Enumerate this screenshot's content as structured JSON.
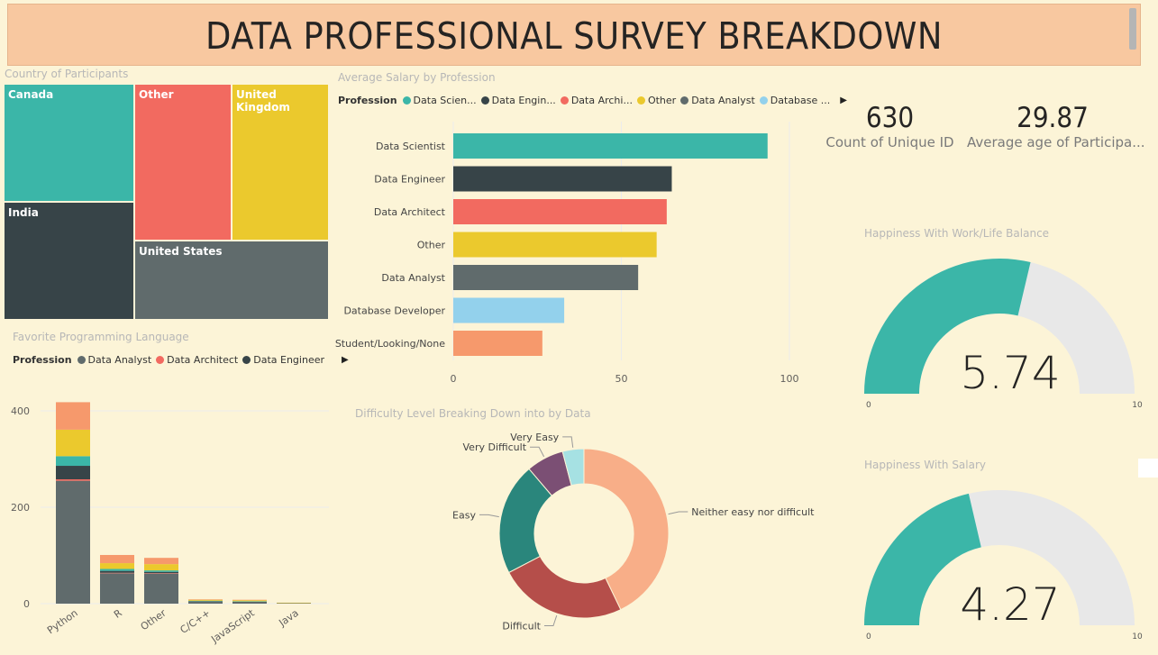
{
  "title": "DATA PROFESSIONAL SURVEY BREAKDOWN",
  "colors": {
    "teal": "#3bb6a8",
    "dark": "#374448",
    "coral": "#f26a60",
    "yellow": "#ebc92d",
    "gray": "#606b6c",
    "lightblue": "#93d1ec",
    "orange": "#f6996c",
    "background": "#fcf4d7",
    "gauge_track": "#e8e8e8"
  },
  "treemap": {
    "title": "Country of Participants",
    "cells": [
      {
        "label": "Canada",
        "color": "#3bb6a8"
      },
      {
        "label": "Other",
        "color": "#f26a60"
      },
      {
        "label": "United Kingdom",
        "color": "#ebc92d"
      },
      {
        "label": "India",
        "color": "#374448"
      },
      {
        "label": "United States",
        "color": "#606b6c"
      }
    ]
  },
  "salary": {
    "title": "Average Salary by Profession",
    "legend_head": "Profession",
    "legend": [
      {
        "label": "Data Scien...",
        "color": "#3bb6a8"
      },
      {
        "label": "Data Engin...",
        "color": "#374448"
      },
      {
        "label": "Data Archi...",
        "color": "#f26a60"
      },
      {
        "label": "Other",
        "color": "#ebc92d"
      },
      {
        "label": "Data Analyst",
        "color": "#606b6c"
      },
      {
        "label": "Database ...",
        "color": "#93d1ec"
      }
    ]
  },
  "language": {
    "title": "Favorite Programming Language",
    "legend_head": "Profession",
    "legend": [
      {
        "label": "Data Analyst",
        "color": "#606b6c"
      },
      {
        "label": "Data Architect",
        "color": "#f26a60"
      },
      {
        "label": "Data Engineer",
        "color": "#374448"
      }
    ]
  },
  "difficulty": {
    "title": "Difficulty Level Breaking Down into by Data"
  },
  "kpis": [
    {
      "value": "630",
      "label": "Count of Unique ID"
    },
    {
      "value": "29.87",
      "label": "Average age of Participa..."
    }
  ],
  "gauges": [
    {
      "title": "Happiness With Work/Life Balance",
      "value": 5.74,
      "display": "5.74",
      "min": 0,
      "max": 10,
      "min_label": "0",
      "max_label": "10"
    },
    {
      "title": "Happiness With Salary",
      "value": 4.27,
      "display": "4.27",
      "min": 0,
      "max": 10,
      "min_label": "0",
      "max_label": "10"
    }
  ],
  "chart_data": [
    {
      "type": "bar",
      "orientation": "horizontal",
      "title": "Average Salary by Profession",
      "categories": [
        "Data Scientist",
        "Data Engineer",
        "Data Architect",
        "Other",
        "Data Analyst",
        "Database Developer",
        "Student/Looking/None"
      ],
      "values": [
        93.5,
        65,
        63.5,
        60.5,
        55,
        33,
        26.5
      ],
      "colors": [
        "#3bb6a8",
        "#374448",
        "#f26a60",
        "#ebc92d",
        "#606b6c",
        "#93d1ec",
        "#f6996c"
      ],
      "xlim": [
        0,
        100
      ],
      "xticks": [
        0,
        50,
        100
      ],
      "grid": true
    },
    {
      "type": "bar",
      "stacked": true,
      "title": "Favorite Programming Language",
      "categories": [
        "Python",
        "R",
        "Other",
        "C/C++",
        "JavaScript",
        "Java"
      ],
      "series": [
        {
          "values": [
            255,
            63,
            62,
            4,
            3,
            1
          ],
          "color": "#606b6c"
        },
        {
          "values": [
            3,
            1,
            1,
            0,
            0,
            0
          ],
          "color": "#f26a60"
        },
        {
          "values": [
            28,
            4,
            3,
            1,
            1,
            0
          ],
          "color": "#374448"
        },
        {
          "values": [
            20,
            4,
            3,
            1,
            1,
            0
          ],
          "color": "#3bb6a8"
        },
        {
          "values": [
            55,
            12,
            13,
            2,
            2,
            1
          ],
          "color": "#ebc92d"
        },
        {
          "values": [
            57,
            17,
            13,
            1,
            1,
            0
          ],
          "color": "#f6996c"
        }
      ],
      "ylim": [
        0,
        430
      ],
      "yticks": [
        0,
        200,
        400
      ],
      "grid": true
    },
    {
      "type": "pie",
      "donut": true,
      "title": "Difficulty Level Breaking Down into by Data",
      "slices": [
        {
          "label": "Neither easy nor difficult",
          "value": 42,
          "color": "#f8ae88"
        },
        {
          "label": "Difficult",
          "value": 24,
          "color": "#b54e4a"
        },
        {
          "label": "Easy",
          "value": 21,
          "color": "#2a867c"
        },
        {
          "label": "Very Difficult",
          "value": 7,
          "color": "#7b4f74"
        },
        {
          "label": "Very Easy",
          "value": 4,
          "color": "#a6e1e3"
        }
      ]
    }
  ]
}
